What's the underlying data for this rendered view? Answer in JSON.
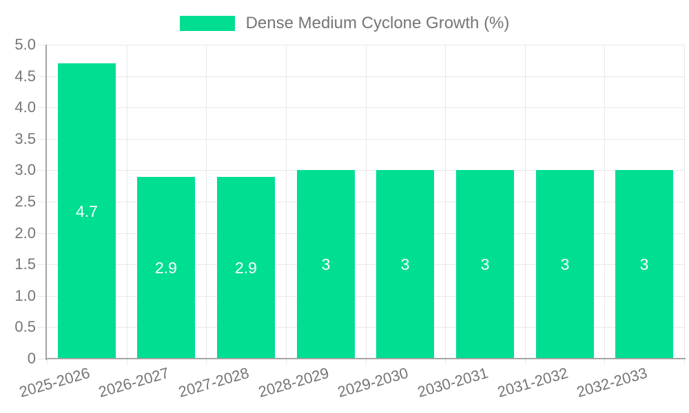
{
  "chart_data": {
    "type": "bar",
    "title": "Dense Medium Cyclone Growth (%)",
    "legend": [
      "Dense Medium Cyclone Growth (%)"
    ],
    "legend_position": "top-center",
    "categories": [
      "2025-2026",
      "2026-2027",
      "2027-2028",
      "2028-2029",
      "2029-2030",
      "2030-2031",
      "2031-2032",
      "2032-2033"
    ],
    "values": [
      4.7,
      2.9,
      2.9,
      3,
      3,
      3,
      3,
      3
    ],
    "bar_labels": [
      "4.7",
      "2.9",
      "2.9",
      "3",
      "3",
      "3",
      "3",
      "3"
    ],
    "xlabel": "",
    "ylabel": "",
    "ylim": [
      0,
      5
    ],
    "ytick_step": 0.5,
    "ytick_labels": [
      "5.0",
      "4.5",
      "4.0",
      "3.5",
      "3.0",
      "2.5",
      "2.0",
      "1.5",
      "1.0",
      "0.5",
      "0"
    ],
    "grid": true,
    "colors": {
      "bar": "#00DE91",
      "grid": "#E8E8E8",
      "axis": "#A3A3A3",
      "tick_label": "#757575",
      "bar_label": "#FFFFFF",
      "background": "#FFFFFF"
    }
  }
}
